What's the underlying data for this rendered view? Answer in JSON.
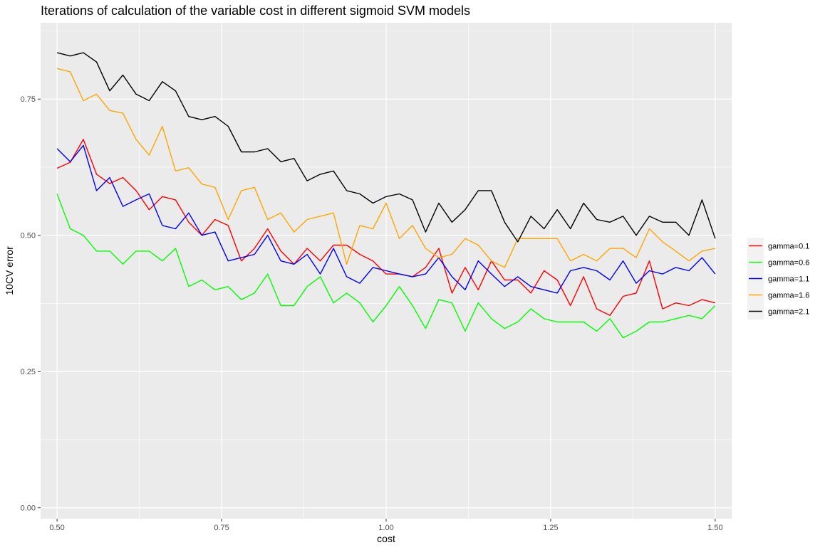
{
  "chart_data": {
    "type": "line",
    "title": "Iterations of calculation of the variable cost in different sigmoid SVM models",
    "xlabel": "cost",
    "ylabel": "10CV error",
    "xlim": [
      0.475,
      1.525
    ],
    "ylim": [
      -0.02,
      0.89
    ],
    "x_ticks": [
      0.5,
      0.75,
      1.0,
      1.25,
      1.5
    ],
    "x_tick_labels": [
      "0.50",
      "0.75",
      "1.00",
      "1.25",
      "1.50"
    ],
    "y_ticks": [
      0.0,
      0.25,
      0.5,
      0.75
    ],
    "y_tick_labels": [
      "0.00",
      "0.25",
      "0.50",
      "0.75"
    ],
    "grid": true,
    "legend_position": "right",
    "x": [
      0.5,
      0.52,
      0.54,
      0.56,
      0.58,
      0.6,
      0.62,
      0.64,
      0.66,
      0.68,
      0.7,
      0.72,
      0.74,
      0.76,
      0.78,
      0.8,
      0.82,
      0.84,
      0.86,
      0.88,
      0.9,
      0.92,
      0.94,
      0.96,
      0.98,
      1.0,
      1.02,
      1.04,
      1.06,
      1.08,
      1.1,
      1.12,
      1.14,
      1.16,
      1.18,
      1.2,
      1.22,
      1.24,
      1.26,
      1.28,
      1.3,
      1.32,
      1.34,
      1.36,
      1.38,
      1.4,
      1.42,
      1.44,
      1.46,
      1.48,
      1.5
    ],
    "series": [
      {
        "name": "gamma=0.1",
        "color": "#ff0000",
        "values": [
          0.623,
          0.634,
          0.676,
          0.612,
          0.595,
          0.606,
          0.582,
          0.547,
          0.571,
          0.565,
          0.524,
          0.5,
          0.529,
          0.518,
          0.453,
          0.476,
          0.512,
          0.471,
          0.447,
          0.476,
          0.453,
          0.482,
          0.482,
          0.465,
          0.453,
          0.429,
          0.429,
          0.424,
          0.441,
          0.476,
          0.394,
          0.441,
          0.4,
          0.453,
          0.418,
          0.418,
          0.394,
          0.435,
          0.418,
          0.371,
          0.424,
          0.365,
          0.353,
          0.388,
          0.394,
          0.453,
          0.365,
          0.376,
          0.371,
          0.382,
          0.376
        ]
      },
      {
        "name": "gamma=0.6",
        "color": "#00ff00",
        "values": [
          0.576,
          0.512,
          0.5,
          0.471,
          0.471,
          0.447,
          0.471,
          0.471,
          0.453,
          0.476,
          0.406,
          0.418,
          0.4,
          0.406,
          0.382,
          0.394,
          0.429,
          0.371,
          0.371,
          0.406,
          0.424,
          0.376,
          0.394,
          0.376,
          0.341,
          0.371,
          0.406,
          0.371,
          0.329,
          0.382,
          0.376,
          0.324,
          0.376,
          0.347,
          0.329,
          0.341,
          0.365,
          0.347,
          0.341,
          0.341,
          0.341,
          0.324,
          0.347,
          0.312,
          0.324,
          0.341,
          0.341,
          0.347,
          0.353,
          0.347,
          0.371
        ]
      },
      {
        "name": "gamma=1.1",
        "color": "#0000ff",
        "values": [
          0.659,
          0.635,
          0.665,
          0.582,
          0.606,
          0.553,
          0.565,
          0.576,
          0.518,
          0.512,
          0.541,
          0.5,
          0.506,
          0.453,
          0.459,
          0.465,
          0.5,
          0.453,
          0.447,
          0.465,
          0.429,
          0.476,
          0.424,
          0.412,
          0.441,
          0.435,
          0.429,
          0.424,
          0.429,
          0.459,
          0.424,
          0.4,
          0.453,
          0.429,
          0.406,
          0.424,
          0.406,
          0.4,
          0.394,
          0.435,
          0.441,
          0.435,
          0.418,
          0.453,
          0.412,
          0.435,
          0.429,
          0.441,
          0.435,
          0.459,
          0.429
        ]
      },
      {
        "name": "gamma=1.6",
        "color": "#ffa500",
        "values": [
          0.806,
          0.8,
          0.747,
          0.759,
          0.729,
          0.724,
          0.676,
          0.647,
          0.7,
          0.618,
          0.624,
          0.594,
          0.588,
          0.529,
          0.582,
          0.588,
          0.529,
          0.541,
          0.506,
          0.529,
          0.535,
          0.541,
          0.447,
          0.518,
          0.512,
          0.559,
          0.494,
          0.518,
          0.476,
          0.459,
          0.465,
          0.494,
          0.482,
          0.453,
          0.441,
          0.494,
          0.494,
          0.494,
          0.494,
          0.453,
          0.465,
          0.453,
          0.476,
          0.476,
          0.459,
          0.512,
          0.488,
          0.471,
          0.453,
          0.471,
          0.476
        ]
      },
      {
        "name": "gamma=2.1",
        "color": "#000000",
        "values": [
          0.835,
          0.829,
          0.835,
          0.818,
          0.765,
          0.794,
          0.759,
          0.747,
          0.782,
          0.765,
          0.718,
          0.712,
          0.718,
          0.7,
          0.653,
          0.653,
          0.659,
          0.635,
          0.641,
          0.6,
          0.612,
          0.618,
          0.582,
          0.576,
          0.559,
          0.571,
          0.576,
          0.565,
          0.506,
          0.559,
          0.524,
          0.547,
          0.582,
          0.582,
          0.524,
          0.488,
          0.535,
          0.512,
          0.547,
          0.512,
          0.559,
          0.529,
          0.524,
          0.535,
          0.5,
          0.535,
          0.524,
          0.524,
          0.5,
          0.565,
          0.494
        ]
      }
    ]
  }
}
